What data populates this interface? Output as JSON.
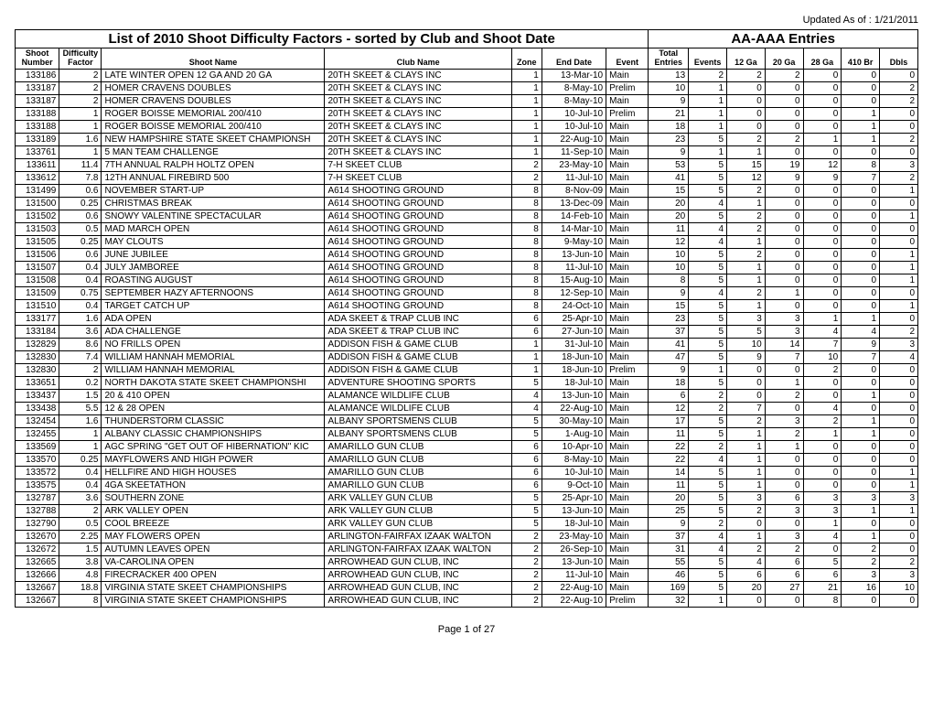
{
  "updated_label": "Updated As of :  1/21/2011",
  "title_left": "List of 2010 Shoot Difficulty Factors - sorted by Club and Shoot Date",
  "title_right": "AA-AAA Entries",
  "footer": "Page 1 of 27",
  "columns": [
    "Shoot Number",
    "Difficulty Factor",
    "Shoot Name",
    "Club Name",
    "Zone",
    "End Date",
    "Event",
    "Total Entries",
    "Events",
    "12 Ga",
    "20 Ga",
    "28 Ga",
    "410 Br",
    "Dbls"
  ],
  "rows": [
    [
      "133186",
      "2",
      "LATE WINTER OPEN 12 GA AND 20 GA",
      "20TH SKEET & CLAYS INC",
      "1",
      "13-Mar-10",
      "Main",
      "13",
      "2",
      "2",
      "2",
      "0",
      "0",
      "0"
    ],
    [
      "133187",
      "2",
      "HOMER CRAVENS DOUBLES",
      "20TH SKEET & CLAYS INC",
      "1",
      "8-May-10",
      "Prelim",
      "10",
      "1",
      "0",
      "0",
      "0",
      "0",
      "2"
    ],
    [
      "133187",
      "2",
      "HOMER CRAVENS DOUBLES",
      "20TH SKEET & CLAYS INC",
      "1",
      "8-May-10",
      "Main",
      "9",
      "1",
      "0",
      "0",
      "0",
      "0",
      "2"
    ],
    [
      "133188",
      "1",
      "ROGER BOISSE MEMORIAL 200/410",
      "20TH SKEET & CLAYS INC",
      "1",
      "10-Jul-10",
      "Prelim",
      "21",
      "1",
      "0",
      "0",
      "0",
      "1",
      "0"
    ],
    [
      "133188",
      "1",
      "ROGER BOISSE MEMORIAL 200/410",
      "20TH SKEET & CLAYS INC",
      "1",
      "10-Jul-10",
      "Main",
      "18",
      "1",
      "0",
      "0",
      "0",
      "1",
      "0"
    ],
    [
      "133189",
      "1.6",
      "NEW HAMPSHIRE STATE SKEET CHAMPIONSH",
      "20TH SKEET & CLAYS INC",
      "1",
      "22-Aug-10",
      "Main",
      "23",
      "5",
      "2",
      "2",
      "1",
      "1",
      "2"
    ],
    [
      "133761",
      "1",
      "5 MAN TEAM CHALLENGE",
      "20TH SKEET & CLAYS INC",
      "1",
      "11-Sep-10",
      "Main",
      "9",
      "1",
      "1",
      "0",
      "0",
      "0",
      "0"
    ],
    [
      "133611",
      "11.4",
      "7TH ANNUAL RALPH HOLTZ OPEN",
      "7-H SKEET CLUB",
      "2",
      "23-May-10",
      "Main",
      "53",
      "5",
      "15",
      "19",
      "12",
      "8",
      "3"
    ],
    [
      "133612",
      "7.8",
      "12TH ANNUAL FIREBIRD 500",
      "7-H SKEET CLUB",
      "2",
      "11-Jul-10",
      "Main",
      "41",
      "5",
      "12",
      "9",
      "9",
      "7",
      "2"
    ],
    [
      "131499",
      "0.6",
      "NOVEMBER START-UP",
      "A614 SHOOTING GROUND",
      "8",
      "8-Nov-09",
      "Main",
      "15",
      "5",
      "2",
      "0",
      "0",
      "0",
      "1"
    ],
    [
      "131500",
      "0.25",
      "CHRISTMAS BREAK",
      "A614 SHOOTING GROUND",
      "8",
      "13-Dec-09",
      "Main",
      "20",
      "4",
      "1",
      "0",
      "0",
      "0",
      "0"
    ],
    [
      "131502",
      "0.6",
      "SNOWY VALENTINE SPECTACULAR",
      "A614 SHOOTING GROUND",
      "8",
      "14-Feb-10",
      "Main",
      "20",
      "5",
      "2",
      "0",
      "0",
      "0",
      "1"
    ],
    [
      "131503",
      "0.5",
      "MAD MARCH OPEN",
      "A614 SHOOTING GROUND",
      "8",
      "14-Mar-10",
      "Main",
      "11",
      "4",
      "2",
      "0",
      "0",
      "0",
      "0"
    ],
    [
      "131505",
      "0.25",
      "MAY CLOUTS",
      "A614 SHOOTING GROUND",
      "8",
      "9-May-10",
      "Main",
      "12",
      "4",
      "1",
      "0",
      "0",
      "0",
      "0"
    ],
    [
      "131506",
      "0.6",
      "JUNE JUBILEE",
      "A614 SHOOTING GROUND",
      "8",
      "13-Jun-10",
      "Main",
      "10",
      "5",
      "2",
      "0",
      "0",
      "0",
      "1"
    ],
    [
      "131507",
      "0.4",
      "JULY  JAMBOREE",
      "A614 SHOOTING GROUND",
      "8",
      "11-Jul-10",
      "Main",
      "10",
      "5",
      "1",
      "0",
      "0",
      "0",
      "1"
    ],
    [
      "131508",
      "0.4",
      "ROASTING AUGUST",
      "A614 SHOOTING GROUND",
      "8",
      "15-Aug-10",
      "Main",
      "8",
      "5",
      "1",
      "0",
      "0",
      "0",
      "1"
    ],
    [
      "131509",
      "0.75",
      "SEPTEMBER HAZY AFTERNOONS",
      "A614 SHOOTING GROUND",
      "8",
      "12-Sep-10",
      "Main",
      "9",
      "4",
      "2",
      "1",
      "0",
      "0",
      "0"
    ],
    [
      "131510",
      "0.4",
      "TARGET CATCH UP",
      "A614 SHOOTING GROUND",
      "8",
      "24-Oct-10",
      "Main",
      "15",
      "5",
      "1",
      "0",
      "0",
      "0",
      "1"
    ],
    [
      "133177",
      "1.6",
      "ADA OPEN",
      "ADA SKEET & TRAP CLUB INC",
      "6",
      "25-Apr-10",
      "Main",
      "23",
      "5",
      "3",
      "3",
      "1",
      "1",
      "0"
    ],
    [
      "133184",
      "3.6",
      "ADA CHALLENGE",
      "ADA SKEET & TRAP CLUB INC",
      "6",
      "27-Jun-10",
      "Main",
      "37",
      "5",
      "5",
      "3",
      "4",
      "4",
      "2"
    ],
    [
      "132829",
      "8.6",
      "NO FRILLS OPEN",
      "ADDISON FISH & GAME CLUB",
      "1",
      "31-Jul-10",
      "Main",
      "41",
      "5",
      "10",
      "14",
      "7",
      "9",
      "3"
    ],
    [
      "132830",
      "7.4",
      "WILLIAM HANNAH MEMORIAL",
      "ADDISON FISH & GAME CLUB",
      "1",
      "18-Jun-10",
      "Main",
      "47",
      "5",
      "9",
      "7",
      "10",
      "7",
      "4"
    ],
    [
      "132830",
      "2",
      "WILLIAM HANNAH MEMORIAL",
      "ADDISON FISH & GAME CLUB",
      "1",
      "18-Jun-10",
      "Prelim",
      "9",
      "1",
      "0",
      "0",
      "2",
      "0",
      "0"
    ],
    [
      "133651",
      "0.2",
      "NORTH DAKOTA STATE SKEET CHAMPIONSHI",
      "ADVENTURE SHOOTING SPORTS",
      "5",
      "18-Jul-10",
      "Main",
      "18",
      "5",
      "0",
      "1",
      "0",
      "0",
      "0"
    ],
    [
      "133437",
      "1.5",
      "20 & 410 OPEN",
      "ALAMANCE WILDLIFE CLUB",
      "4",
      "13-Jun-10",
      "Main",
      "6",
      "2",
      "0",
      "2",
      "0",
      "1",
      "0"
    ],
    [
      "133438",
      "5.5",
      "12 & 28  OPEN",
      "ALAMANCE WILDLIFE CLUB",
      "4",
      "22-Aug-10",
      "Main",
      "12",
      "2",
      "7",
      "0",
      "4",
      "0",
      "0"
    ],
    [
      "132454",
      "1.6",
      "THUNDERSTORM CLASSIC",
      "ALBANY SPORTSMENS CLUB",
      "5",
      "30-May-10",
      "Main",
      "17",
      "5",
      "2",
      "3",
      "2",
      "1",
      "0"
    ],
    [
      "132455",
      "1",
      "ALBANY CLASSIC CHAMPIONSHIPS",
      "ALBANY SPORTSMENS CLUB",
      "5",
      "1-Aug-10",
      "Main",
      "11",
      "5",
      "1",
      "2",
      "1",
      "1",
      "0"
    ],
    [
      "133569",
      "1",
      "AGC SPRING \"GET OUT OF HIBERNATION\" KIC",
      "AMARILLO GUN CLUB",
      "6",
      "10-Apr-10",
      "Main",
      "22",
      "2",
      "1",
      "1",
      "0",
      "0",
      "0"
    ],
    [
      "133570",
      "0.25",
      "MAYFLOWERS AND HIGH POWER",
      "AMARILLO GUN CLUB",
      "6",
      "8-May-10",
      "Main",
      "22",
      "4",
      "1",
      "0",
      "0",
      "0",
      "0"
    ],
    [
      "133572",
      "0.4",
      "HELLFIRE AND HIGH HOUSES",
      "AMARILLO GUN CLUB",
      "6",
      "10-Jul-10",
      "Main",
      "14",
      "5",
      "1",
      "0",
      "0",
      "0",
      "1"
    ],
    [
      "133575",
      "0.4",
      "4GA SKEETATHON",
      "AMARILLO GUN CLUB",
      "6",
      "9-Oct-10",
      "Main",
      "11",
      "5",
      "1",
      "0",
      "0",
      "0",
      "1"
    ],
    [
      "132787",
      "3.6",
      "SOUTHERN ZONE",
      "ARK VALLEY GUN CLUB",
      "5",
      "25-Apr-10",
      "Main",
      "20",
      "5",
      "3",
      "6",
      "3",
      "3",
      "3"
    ],
    [
      "132788",
      "2",
      "ARK VALLEY OPEN",
      "ARK VALLEY GUN CLUB",
      "5",
      "13-Jun-10",
      "Main",
      "25",
      "5",
      "2",
      "3",
      "3",
      "1",
      "1"
    ],
    [
      "132790",
      "0.5",
      "COOL  BREEZE",
      "ARK VALLEY GUN CLUB",
      "5",
      "18-Jul-10",
      "Main",
      "9",
      "2",
      "0",
      "0",
      "1",
      "0",
      "0"
    ],
    [
      "132670",
      "2.25",
      "MAY FLOWERS OPEN",
      "ARLINGTON-FAIRFAX IZAAK WALTON",
      "2",
      "23-May-10",
      "Main",
      "37",
      "4",
      "1",
      "3",
      "4",
      "1",
      "0"
    ],
    [
      "132672",
      "1.5",
      "AUTUMN LEAVES OPEN",
      "ARLINGTON-FAIRFAX IZAAK WALTON",
      "2",
      "26-Sep-10",
      "Main",
      "31",
      "4",
      "2",
      "2",
      "0",
      "2",
      "0"
    ],
    [
      "132665",
      "3.8",
      "VA-CAROLINA OPEN",
      "ARROWHEAD GUN CLUB, INC",
      "2",
      "13-Jun-10",
      "Main",
      "55",
      "5",
      "4",
      "6",
      "5",
      "2",
      "2"
    ],
    [
      "132666",
      "4.8",
      "FIRECRACKER 400 OPEN",
      "ARROWHEAD GUN CLUB, INC",
      "2",
      "11-Jul-10",
      "Main",
      "46",
      "5",
      "6",
      "6",
      "6",
      "3",
      "3"
    ],
    [
      "132667",
      "18.8",
      "VIRGINIA STATE SKEET CHAMPIONSHIPS",
      "ARROWHEAD GUN CLUB, INC",
      "2",
      "22-Aug-10",
      "Main",
      "169",
      "5",
      "20",
      "27",
      "21",
      "16",
      "10"
    ],
    [
      "132667",
      "8",
      "VIRGINIA STATE SKEET CHAMPIONSHIPS",
      "ARROWHEAD GUN CLUB, INC",
      "2",
      "22-Aug-10",
      "Prelim",
      "32",
      "1",
      "0",
      "0",
      "8",
      "0",
      "0"
    ]
  ]
}
